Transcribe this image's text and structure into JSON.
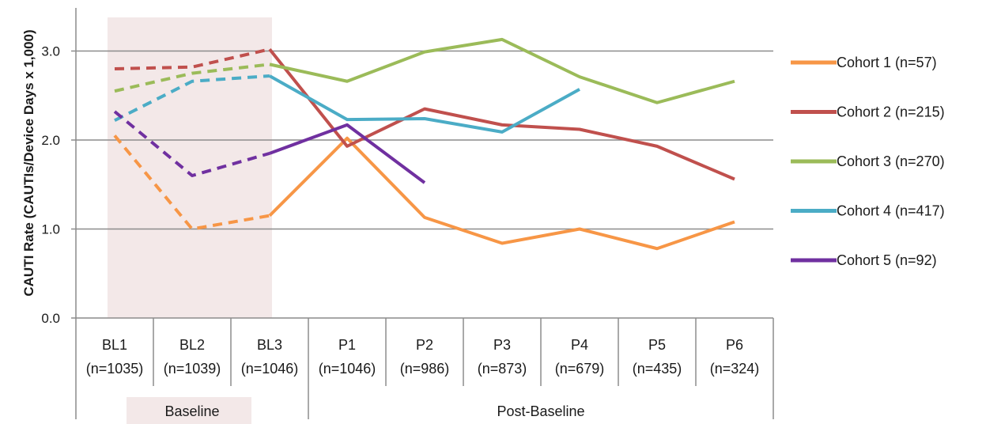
{
  "chart_data": {
    "type": "line",
    "ylabel": "CAUTI Rate (CAUTIs/Device Days x 1,000)",
    "xlabel": "",
    "ylim": [
      0,
      3.4
    ],
    "yticks": [
      "0.0",
      "1.0",
      "2.0",
      "3.0"
    ],
    "ytick_values": [
      0,
      1,
      2,
      3
    ],
    "grid": "horizontal",
    "legend_position": "right",
    "categories": [
      "BL1",
      "BL2",
      "BL3",
      "P1",
      "P2",
      "P3",
      "P4",
      "P5",
      "P6"
    ],
    "category_counts": [
      "(n=1035)",
      "(n=1039)",
      "(n=1046)",
      "(n=1046)",
      "(n=986)",
      "(n=873)",
      "(n=679)",
      "(n=435)",
      "(n=324)"
    ],
    "groups": [
      {
        "label": "Baseline",
        "span": [
          "BL1",
          "BL3"
        ],
        "shaded": true
      },
      {
        "label": "Post-Baseline",
        "span": [
          "P1",
          "P6"
        ],
        "shaded": false
      }
    ],
    "baseline_style": "dashed",
    "series": [
      {
        "name": "Cohort 1 (n=57)",
        "color": "#f79646",
        "values": [
          2.05,
          1.0,
          1.15,
          2.02,
          1.13,
          0.84,
          1.0,
          0.78,
          1.08
        ]
      },
      {
        "name": "Cohort 2 (n=215)",
        "color": "#c0504d",
        "values": [
          2.8,
          2.82,
          3.02,
          1.93,
          2.35,
          2.17,
          2.12,
          1.93,
          1.56
        ]
      },
      {
        "name": "Cohort 3 (n=270)",
        "color": "#9bbb59",
        "values": [
          2.55,
          2.75,
          2.85,
          2.66,
          2.99,
          3.13,
          2.71,
          2.42,
          2.66
        ]
      },
      {
        "name": "Cohort 4 (n=417)",
        "color": "#4bacc6",
        "values": [
          2.22,
          2.66,
          2.72,
          2.23,
          2.24,
          2.09,
          2.57,
          null,
          null
        ]
      },
      {
        "name": "Cohort 5 (n=92)",
        "color": "#7030a0",
        "values": [
          2.32,
          1.6,
          1.85,
          2.17,
          1.52,
          null,
          null,
          null,
          null
        ]
      }
    ]
  }
}
